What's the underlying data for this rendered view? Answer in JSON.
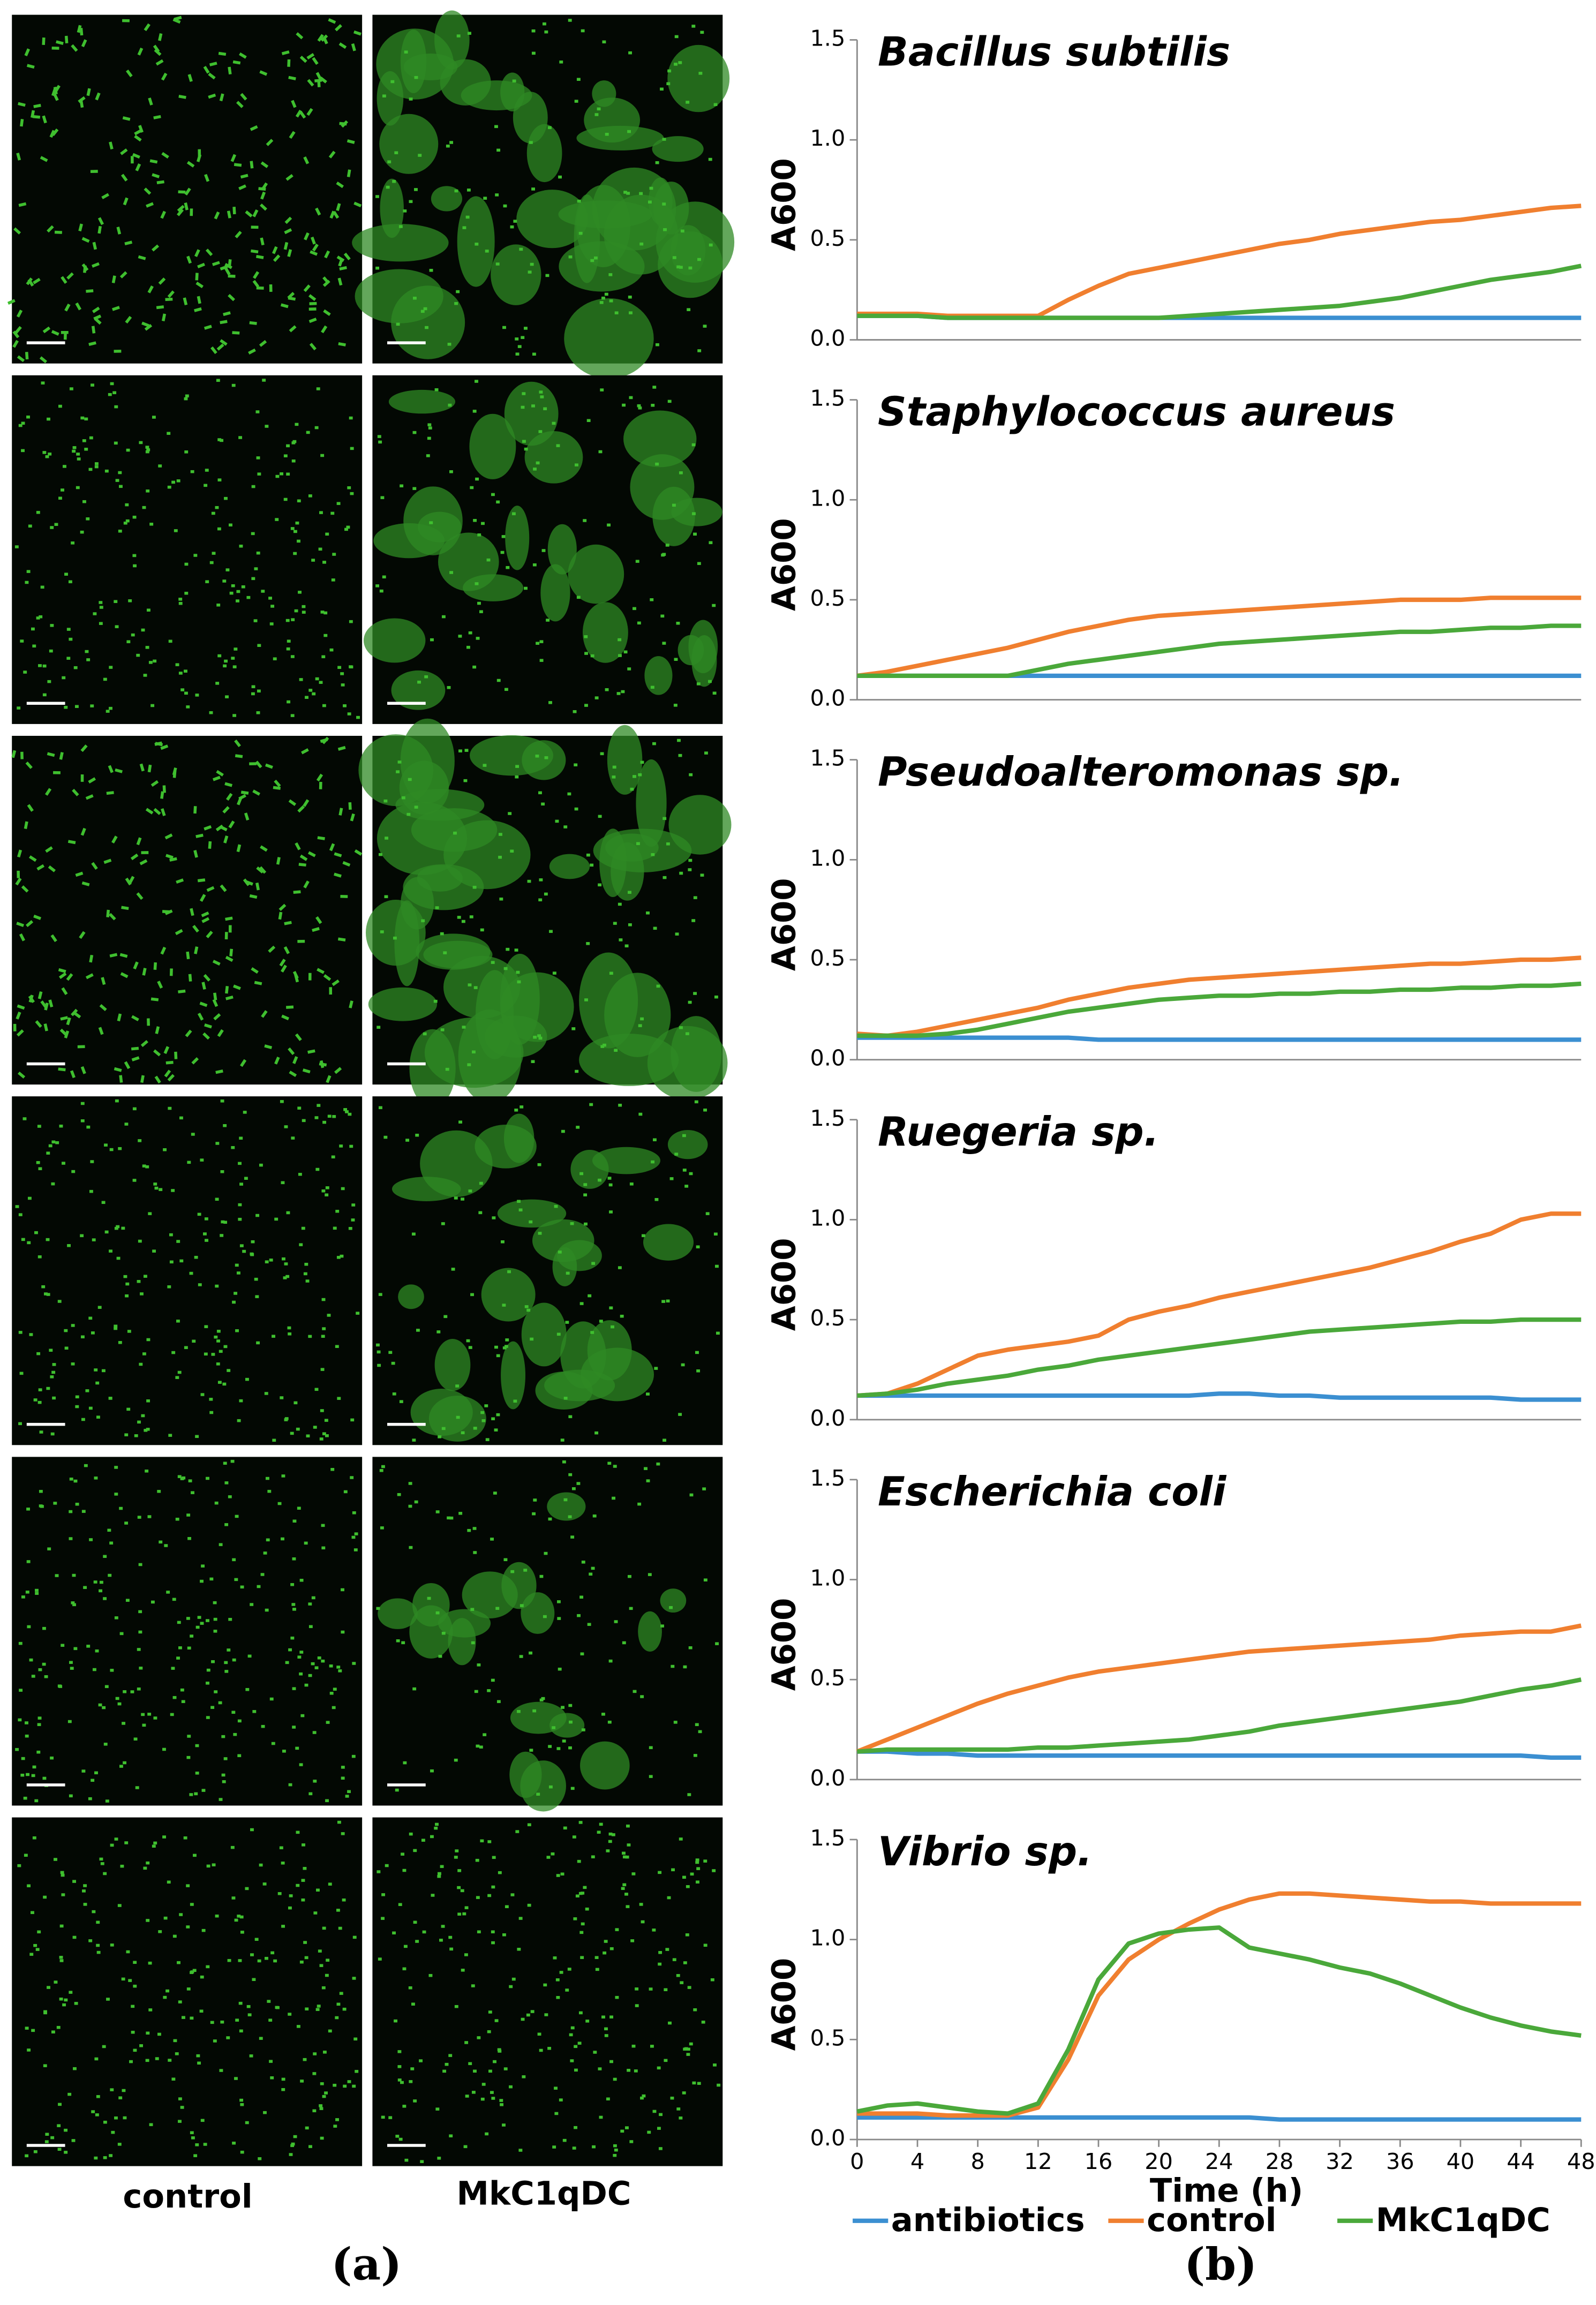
{
  "chart_data": [
    {
      "type": "line",
      "title": "Bacillus subtilis",
      "y_label": "A600",
      "x": [
        0,
        2,
        4,
        6,
        8,
        10,
        12,
        14,
        16,
        18,
        20,
        22,
        24,
        26,
        28,
        30,
        32,
        34,
        36,
        38,
        40,
        42,
        44,
        46,
        48
      ],
      "xlim": [
        0,
        48
      ],
      "ylim": [
        0,
        1.5
      ],
      "yticks": [
        {
          "value": 0,
          "label": "0.0"
        },
        {
          "value": 0.5,
          "label": "0.5"
        },
        {
          "value": 1,
          "label": "1.0"
        },
        {
          "value": 1.5,
          "label": "1.5"
        }
      ],
      "series": [
        {
          "name": "antibiotics",
          "color": "#3b8fd1",
          "values": [
            0.12,
            0.12,
            0.12,
            0.11,
            0.11,
            0.11,
            0.11,
            0.11,
            0.11,
            0.11,
            0.11,
            0.11,
            0.11,
            0.11,
            0.11,
            0.11,
            0.11,
            0.11,
            0.11,
            0.11,
            0.11,
            0.11,
            0.11,
            0.11,
            0.11
          ]
        },
        {
          "name": "control",
          "color": "#f07f2f",
          "values": [
            0.13,
            0.13,
            0.13,
            0.12,
            0.12,
            0.12,
            0.12,
            0.2,
            0.27,
            0.33,
            0.36,
            0.39,
            0.42,
            0.45,
            0.48,
            0.5,
            0.53,
            0.55,
            0.57,
            0.59,
            0.6,
            0.62,
            0.64,
            0.66,
            0.67
          ]
        },
        {
          "name": "MkC1qDC",
          "color": "#4aa83a",
          "values": [
            0.12,
            0.12,
            0.12,
            0.11,
            0.11,
            0.11,
            0.11,
            0.11,
            0.11,
            0.11,
            0.11,
            0.12,
            0.13,
            0.14,
            0.15,
            0.16,
            0.17,
            0.19,
            0.21,
            0.24,
            0.27,
            0.3,
            0.32,
            0.34,
            0.37
          ]
        }
      ]
    },
    {
      "type": "line",
      "title": "Staphylococcus aureus",
      "y_label": "A600",
      "x": [
        0,
        2,
        4,
        6,
        8,
        10,
        12,
        14,
        16,
        18,
        20,
        22,
        24,
        26,
        28,
        30,
        32,
        34,
        36,
        38,
        40,
        42,
        44,
        46,
        48
      ],
      "xlim": [
        0,
        48
      ],
      "ylim": [
        0,
        1.5
      ],
      "yticks": [
        {
          "value": 0,
          "label": "0.0"
        },
        {
          "value": 0.5,
          "label": "0.5"
        },
        {
          "value": 1,
          "label": "1.0"
        },
        {
          "value": 1.5,
          "label": "1.5"
        }
      ],
      "series": [
        {
          "name": "antibiotics",
          "color": "#3b8fd1",
          "values": [
            0.12,
            0.12,
            0.12,
            0.12,
            0.12,
            0.12,
            0.12,
            0.12,
            0.12,
            0.12,
            0.12,
            0.12,
            0.12,
            0.12,
            0.12,
            0.12,
            0.12,
            0.12,
            0.12,
            0.12,
            0.12,
            0.12,
            0.12,
            0.12,
            0.12
          ]
        },
        {
          "name": "control",
          "color": "#f07f2f",
          "values": [
            0.12,
            0.14,
            0.17,
            0.2,
            0.23,
            0.26,
            0.3,
            0.34,
            0.37,
            0.4,
            0.42,
            0.43,
            0.44,
            0.45,
            0.46,
            0.47,
            0.48,
            0.49,
            0.5,
            0.5,
            0.5,
            0.51,
            0.51,
            0.51,
            0.51
          ]
        },
        {
          "name": "MkC1qDC",
          "color": "#4aa83a",
          "values": [
            0.12,
            0.12,
            0.12,
            0.12,
            0.12,
            0.12,
            0.15,
            0.18,
            0.2,
            0.22,
            0.24,
            0.26,
            0.28,
            0.29,
            0.3,
            0.31,
            0.32,
            0.33,
            0.34,
            0.34,
            0.35,
            0.36,
            0.36,
            0.37,
            0.37
          ]
        }
      ]
    },
    {
      "type": "line",
      "title": "Pseudoalteromonas sp.",
      "y_label": "A600",
      "x": [
        0,
        2,
        4,
        6,
        8,
        10,
        12,
        14,
        16,
        18,
        20,
        22,
        24,
        26,
        28,
        30,
        32,
        34,
        36,
        38,
        40,
        42,
        44,
        46,
        48
      ],
      "xlim": [
        0,
        48
      ],
      "ylim": [
        0,
        1.5
      ],
      "yticks": [
        {
          "value": 0,
          "label": "0.0"
        },
        {
          "value": 0.5,
          "label": "0.5"
        },
        {
          "value": 1,
          "label": "1.0"
        },
        {
          "value": 1.5,
          "label": "1.5"
        }
      ],
      "series": [
        {
          "name": "antibiotics",
          "color": "#3b8fd1",
          "values": [
            0.11,
            0.11,
            0.11,
            0.11,
            0.11,
            0.11,
            0.11,
            0.11,
            0.1,
            0.1,
            0.1,
            0.1,
            0.1,
            0.1,
            0.1,
            0.1,
            0.1,
            0.1,
            0.1,
            0.1,
            0.1,
            0.1,
            0.1,
            0.1,
            0.1
          ]
        },
        {
          "name": "control",
          "color": "#f07f2f",
          "values": [
            0.13,
            0.12,
            0.14,
            0.17,
            0.2,
            0.23,
            0.26,
            0.3,
            0.33,
            0.36,
            0.38,
            0.4,
            0.41,
            0.42,
            0.43,
            0.44,
            0.45,
            0.46,
            0.47,
            0.48,
            0.48,
            0.49,
            0.5,
            0.5,
            0.51
          ]
        },
        {
          "name": "MkC1qDC",
          "color": "#4aa83a",
          "values": [
            0.12,
            0.12,
            0.12,
            0.13,
            0.15,
            0.18,
            0.21,
            0.24,
            0.26,
            0.28,
            0.3,
            0.31,
            0.32,
            0.32,
            0.33,
            0.33,
            0.34,
            0.34,
            0.35,
            0.35,
            0.36,
            0.36,
            0.37,
            0.37,
            0.38
          ]
        }
      ]
    },
    {
      "type": "line",
      "title": "Ruegeria sp.",
      "y_label": "A600",
      "x": [
        0,
        2,
        4,
        6,
        8,
        10,
        12,
        14,
        16,
        18,
        20,
        22,
        24,
        26,
        28,
        30,
        32,
        34,
        36,
        38,
        40,
        42,
        44,
        46,
        48
      ],
      "xlim": [
        0,
        48
      ],
      "ylim": [
        0,
        1.5
      ],
      "yticks": [
        {
          "value": 0,
          "label": "0.0"
        },
        {
          "value": 0.5,
          "label": "0.5"
        },
        {
          "value": 1,
          "label": "1.0"
        },
        {
          "value": 1.5,
          "label": "1.5"
        }
      ],
      "series": [
        {
          "name": "antibiotics",
          "color": "#3b8fd1",
          "values": [
            0.12,
            0.12,
            0.12,
            0.12,
            0.12,
            0.12,
            0.12,
            0.12,
            0.12,
            0.12,
            0.12,
            0.12,
            0.13,
            0.13,
            0.12,
            0.12,
            0.11,
            0.11,
            0.11,
            0.11,
            0.11,
            0.11,
            0.1,
            0.1,
            0.1
          ]
        },
        {
          "name": "control",
          "color": "#f07f2f",
          "values": [
            0.12,
            0.13,
            0.18,
            0.25,
            0.32,
            0.35,
            0.37,
            0.39,
            0.42,
            0.5,
            0.54,
            0.57,
            0.61,
            0.64,
            0.67,
            0.7,
            0.73,
            0.76,
            0.8,
            0.84,
            0.89,
            0.93,
            1.0,
            1.03,
            1.03
          ]
        },
        {
          "name": "MkC1qDC",
          "color": "#4aa83a",
          "values": [
            0.12,
            0.13,
            0.15,
            0.18,
            0.2,
            0.22,
            0.25,
            0.27,
            0.3,
            0.32,
            0.34,
            0.36,
            0.38,
            0.4,
            0.42,
            0.44,
            0.45,
            0.46,
            0.47,
            0.48,
            0.49,
            0.49,
            0.5,
            0.5,
            0.5
          ]
        }
      ]
    },
    {
      "type": "line",
      "title": "Escherichia coli",
      "y_label": "A600",
      "x": [
        0,
        2,
        4,
        6,
        8,
        10,
        12,
        14,
        16,
        18,
        20,
        22,
        24,
        26,
        28,
        30,
        32,
        34,
        36,
        38,
        40,
        42,
        44,
        46,
        48
      ],
      "xlim": [
        0,
        48
      ],
      "ylim": [
        0,
        1.5
      ],
      "yticks": [
        {
          "value": 0,
          "label": "0.0"
        },
        {
          "value": 0.5,
          "label": "0.5"
        },
        {
          "value": 1,
          "label": "1.0"
        },
        {
          "value": 1.5,
          "label": "1.5"
        }
      ],
      "series": [
        {
          "name": "antibiotics",
          "color": "#3b8fd1",
          "values": [
            0.14,
            0.14,
            0.13,
            0.13,
            0.12,
            0.12,
            0.12,
            0.12,
            0.12,
            0.12,
            0.12,
            0.12,
            0.12,
            0.12,
            0.12,
            0.12,
            0.12,
            0.12,
            0.12,
            0.12,
            0.12,
            0.12,
            0.12,
            0.11,
            0.11
          ]
        },
        {
          "name": "control",
          "color": "#f07f2f",
          "values": [
            0.14,
            0.2,
            0.26,
            0.32,
            0.38,
            0.43,
            0.47,
            0.51,
            0.54,
            0.56,
            0.58,
            0.6,
            0.62,
            0.64,
            0.65,
            0.66,
            0.67,
            0.68,
            0.69,
            0.7,
            0.72,
            0.73,
            0.74,
            0.74,
            0.77
          ]
        },
        {
          "name": "MkC1qDC",
          "color": "#4aa83a",
          "values": [
            0.14,
            0.15,
            0.15,
            0.15,
            0.15,
            0.15,
            0.16,
            0.16,
            0.17,
            0.18,
            0.19,
            0.2,
            0.22,
            0.24,
            0.27,
            0.29,
            0.31,
            0.33,
            0.35,
            0.37,
            0.39,
            0.42,
            0.45,
            0.47,
            0.5
          ]
        }
      ]
    },
    {
      "type": "line",
      "title": "Vibrio sp.",
      "y_label": "A600",
      "x_label": "Time (h)",
      "x": [
        0,
        2,
        4,
        6,
        8,
        10,
        12,
        14,
        16,
        18,
        20,
        22,
        24,
        26,
        28,
        30,
        32,
        34,
        36,
        38,
        40,
        42,
        44,
        46,
        48
      ],
      "xlim": [
        0,
        48
      ],
      "xticks": [
        0,
        4,
        8,
        12,
        16,
        20,
        24,
        28,
        32,
        36,
        40,
        44,
        48
      ],
      "ylim": [
        0,
        1.5
      ],
      "yticks": [
        {
          "value": 0,
          "label": "0.0"
        },
        {
          "value": 0.5,
          "label": "0.5"
        },
        {
          "value": 1,
          "label": "1.0"
        },
        {
          "value": 1.5,
          "label": "1.5"
        }
      ],
      "series": [
        {
          "name": "antibiotics",
          "color": "#3b8fd1",
          "values": [
            0.11,
            0.11,
            0.11,
            0.11,
            0.11,
            0.11,
            0.11,
            0.11,
            0.11,
            0.11,
            0.11,
            0.11,
            0.11,
            0.11,
            0.1,
            0.1,
            0.1,
            0.1,
            0.1,
            0.1,
            0.1,
            0.1,
            0.1,
            0.1,
            0.1
          ]
        },
        {
          "name": "control",
          "color": "#f07f2f",
          "values": [
            0.13,
            0.13,
            0.13,
            0.12,
            0.12,
            0.12,
            0.16,
            0.4,
            0.72,
            0.9,
            1.0,
            1.08,
            1.15,
            1.2,
            1.23,
            1.23,
            1.22,
            1.21,
            1.2,
            1.19,
            1.19,
            1.18,
            1.18,
            1.18,
            1.18
          ]
        },
        {
          "name": "MkC1qDC",
          "color": "#4aa83a",
          "values": [
            0.14,
            0.17,
            0.18,
            0.16,
            0.14,
            0.13,
            0.18,
            0.45,
            0.8,
            0.98,
            1.03,
            1.05,
            1.06,
            0.96,
            0.93,
            0.9,
            0.86,
            0.83,
            0.78,
            0.72,
            0.66,
            0.61,
            0.57,
            0.54,
            0.52
          ]
        }
      ]
    }
  ],
  "panel_a": {
    "column_labels": [
      "control",
      "MkC1qDC"
    ],
    "label": "(a)"
  },
  "panel_b": {
    "label": "(b)"
  }
}
